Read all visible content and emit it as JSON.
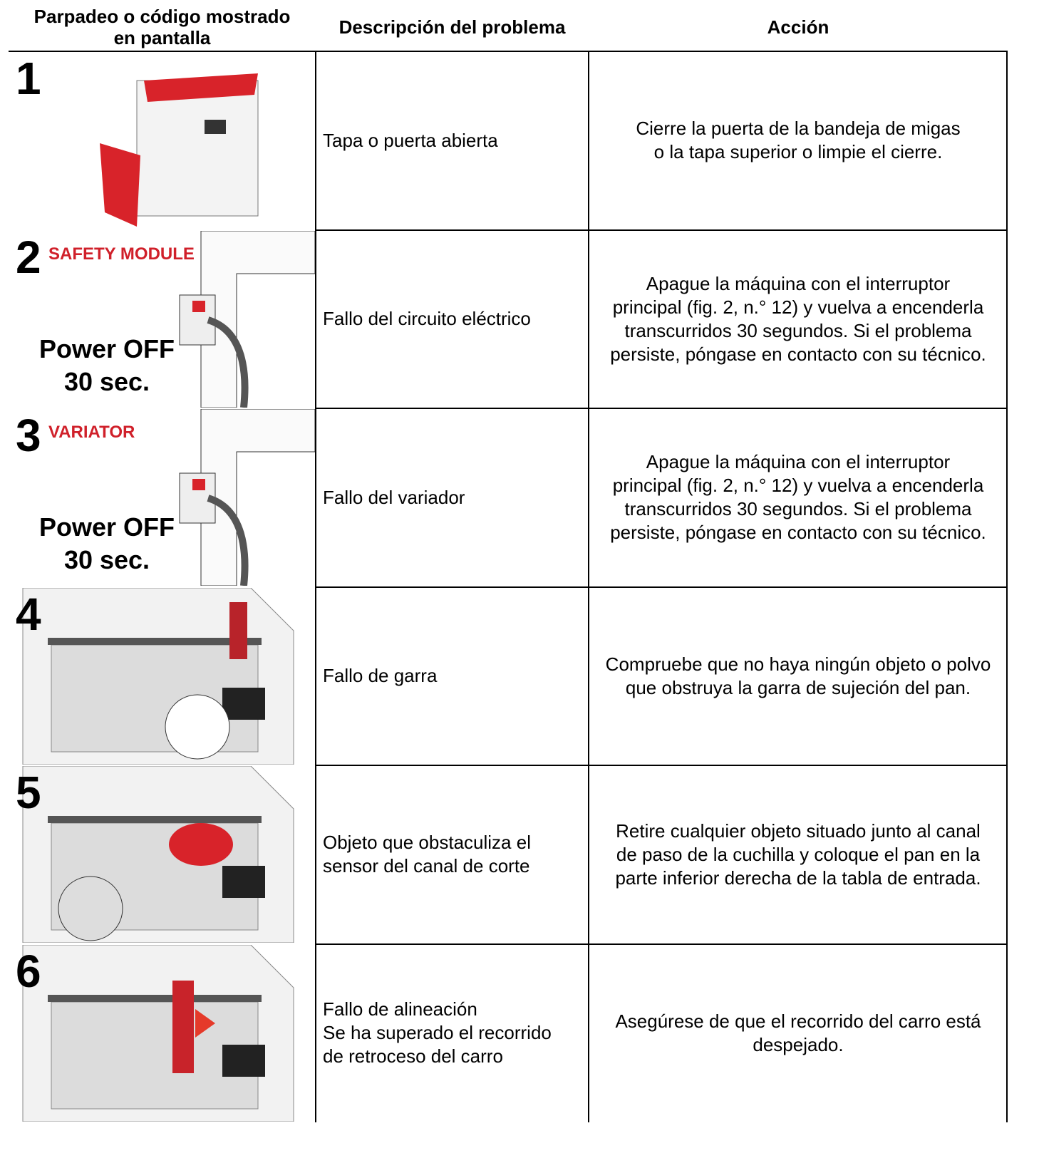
{
  "header": {
    "columns": [
      [
        "Parpadeo o código mostrado",
        "en pantalla"
      ],
      [
        "Descripción del problema"
      ],
      [
        "Acción"
      ]
    ]
  },
  "rows": [
    {
      "code": "1",
      "image_labels": [],
      "description": [
        "Tapa o puerta abierta"
      ],
      "action": [
        "Cierre la puerta de la bandeja de migas",
        "o la tapa superior o limpie el cierre."
      ]
    },
    {
      "code": "2",
      "image_labels": [
        "SAFETY MODULE",
        "Power OFF",
        "30 sec."
      ],
      "description": [
        "Fallo del circuito eléctrico"
      ],
      "action": [
        "Apague la máquina con el interruptor",
        "principal (fig. 2, n.° 12) y vuelva a encenderla",
        "transcurridos 30 segundos. Si el problema",
        "persiste, póngase en contacto con su técnico."
      ]
    },
    {
      "code": "3",
      "image_labels": [
        "VARIATOR",
        "Power OFF",
        "30 sec."
      ],
      "description": [
        "Fallo del variador"
      ],
      "action": [
        "Apague la máquina con el interruptor",
        "principal (fig. 2, n.° 12) y vuelva a encenderla",
        "transcurridos 30 segundos. Si el problema",
        "persiste, póngase en contacto con su técnico."
      ]
    },
    {
      "code": "4",
      "image_labels": [],
      "description": [
        "Fallo de garra"
      ],
      "action": [
        "Compruebe que no haya ningún objeto o polvo",
        "que obstruya la garra de sujeción del pan."
      ]
    },
    {
      "code": "5",
      "image_labels": [],
      "description": [
        "Objeto que obstaculiza el",
        "sensor del canal de corte"
      ],
      "action": [
        "Retire cualquier objeto situado junto al canal",
        "de paso de la cuchilla y coloque el pan en la",
        "parte inferior derecha de la tabla de entrada."
      ]
    },
    {
      "code": "6",
      "image_labels": [],
      "description": [
        "Fallo de alineación",
        "Se ha superado el recorrido",
        "de retroceso del carro"
      ],
      "action": [
        "Asegúrese de que el recorrido del carro está",
        "despejado."
      ]
    }
  ]
}
